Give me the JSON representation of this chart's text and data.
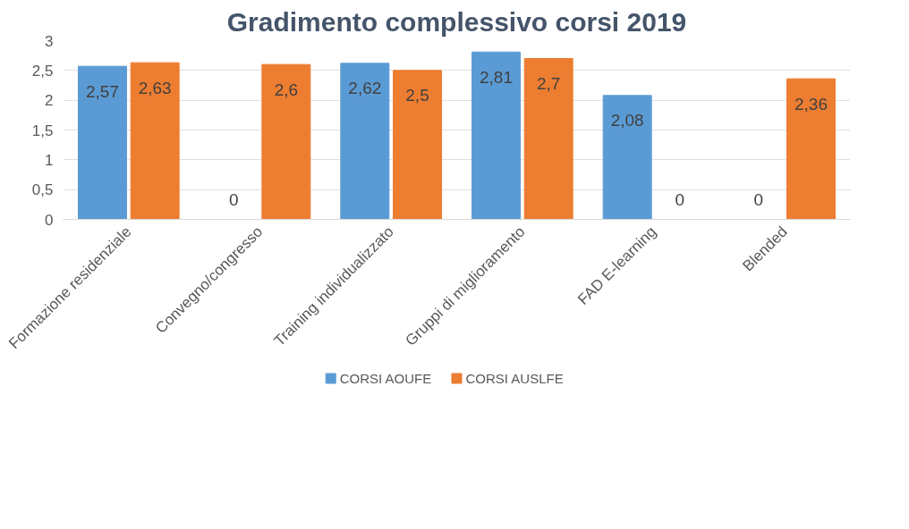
{
  "chart_data": {
    "type": "bar",
    "title": "Gradimento complessivo corsi 2019",
    "categories": [
      "Formazione residenziale",
      "Convegno/congresso",
      "Training individualizzato",
      "Gruppi di miglioramento",
      "FAD E-learning",
      "Blended"
    ],
    "series": [
      {
        "name": "CORSI AOUFE",
        "color": "#5b9bd5",
        "values": [
          2.57,
          0,
          2.62,
          2.81,
          2.08,
          0
        ],
        "value_labels": [
          "2,57",
          "0",
          "2,62",
          "2,81",
          "2,08",
          "0"
        ]
      },
      {
        "name": "CORSI AUSLFE",
        "color": "#ed7d31",
        "values": [
          2.63,
          2.6,
          2.5,
          2.7,
          0,
          2.36
        ],
        "value_labels": [
          "2,63",
          "2,6",
          "2,5",
          "2,7",
          "0",
          "2,36"
        ]
      }
    ],
    "ylim": [
      0,
      3
    ],
    "yticks": [
      0,
      {
        "value": 0.5,
        "label": "0,5"
      },
      1,
      {
        "value": 1.5,
        "label": "1,5"
      },
      2,
      {
        "value": 2.5,
        "label": "2,5"
      },
      3
    ],
    "grid": "y",
    "legend": "bottom"
  }
}
